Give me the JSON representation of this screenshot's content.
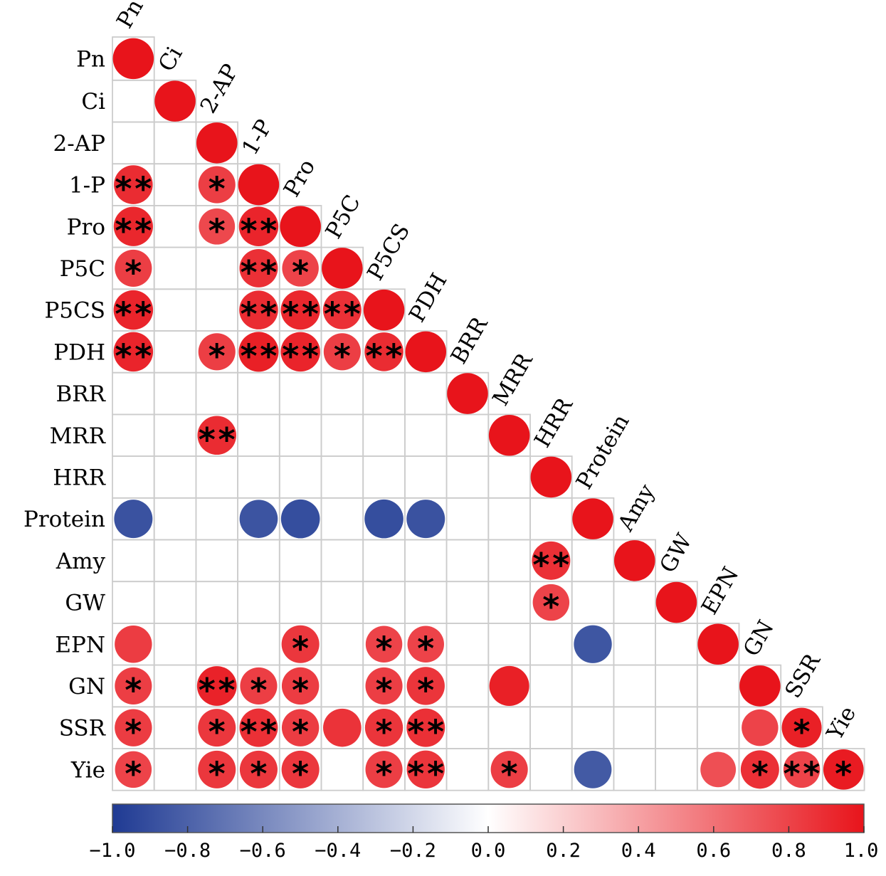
{
  "chart_data": {
    "type": "heatmap",
    "title": "",
    "variables": [
      "Pn",
      "Ci",
      "2-AP",
      "1-P",
      "Pro",
      "P5C",
      "P5CS",
      "PDH",
      "BRR",
      "MRR",
      "HRR",
      "Protein",
      "Amy",
      "GW",
      "EPN",
      "GN",
      "SSR",
      "Yie"
    ],
    "cells": [
      {
        "row": "Pn",
        "col": "Pn",
        "r": 1.0,
        "sig": ""
      },
      {
        "row": "Ci",
        "col": "Ci",
        "r": 1.0,
        "sig": ""
      },
      {
        "row": "2-AP",
        "col": "2-AP",
        "r": 1.0,
        "sig": ""
      },
      {
        "row": "1-P",
        "col": "Pn",
        "r": 0.9,
        "sig": "**"
      },
      {
        "row": "1-P",
        "col": "2-AP",
        "r": 0.82,
        "sig": "*"
      },
      {
        "row": "1-P",
        "col": "1-P",
        "r": 1.0,
        "sig": ""
      },
      {
        "row": "Pro",
        "col": "Pn",
        "r": 0.92,
        "sig": "**"
      },
      {
        "row": "Pro",
        "col": "2-AP",
        "r": 0.78,
        "sig": "*"
      },
      {
        "row": "Pro",
        "col": "1-P",
        "r": 0.93,
        "sig": "**"
      },
      {
        "row": "Pro",
        "col": "Pro",
        "r": 1.0,
        "sig": ""
      },
      {
        "row": "P5C",
        "col": "Pn",
        "r": 0.82,
        "sig": "*"
      },
      {
        "row": "P5C",
        "col": "1-P",
        "r": 0.88,
        "sig": "**"
      },
      {
        "row": "P5C",
        "col": "Pro",
        "r": 0.8,
        "sig": "*"
      },
      {
        "row": "P5C",
        "col": "P5C",
        "r": 1.0,
        "sig": ""
      },
      {
        "row": "P5CS",
        "col": "Pn",
        "r": 0.93,
        "sig": "**"
      },
      {
        "row": "P5CS",
        "col": "1-P",
        "r": 0.9,
        "sig": "**"
      },
      {
        "row": "P5CS",
        "col": "Pro",
        "r": 0.92,
        "sig": "**"
      },
      {
        "row": "P5CS",
        "col": "P5C",
        "r": 0.88,
        "sig": "**"
      },
      {
        "row": "P5CS",
        "col": "P5CS",
        "r": 1.0,
        "sig": ""
      },
      {
        "row": "PDH",
        "col": "Pn",
        "r": 0.93,
        "sig": "**"
      },
      {
        "row": "PDH",
        "col": "2-AP",
        "r": 0.82,
        "sig": "*"
      },
      {
        "row": "PDH",
        "col": "1-P",
        "r": 0.95,
        "sig": "**"
      },
      {
        "row": "PDH",
        "col": "Pro",
        "r": 0.93,
        "sig": "**"
      },
      {
        "row": "PDH",
        "col": "P5C",
        "r": 0.82,
        "sig": "*"
      },
      {
        "row": "PDH",
        "col": "P5CS",
        "r": 0.9,
        "sig": "**"
      },
      {
        "row": "PDH",
        "col": "PDH",
        "r": 1.0,
        "sig": ""
      },
      {
        "row": "BRR",
        "col": "BRR",
        "r": 1.0,
        "sig": ""
      },
      {
        "row": "MRR",
        "col": "2-AP",
        "r": 0.9,
        "sig": "**"
      },
      {
        "row": "MRR",
        "col": "MRR",
        "r": 1.0,
        "sig": ""
      },
      {
        "row": "HRR",
        "col": "HRR",
        "r": 1.0,
        "sig": ""
      },
      {
        "row": "Protein",
        "col": "Pn",
        "r": -0.88,
        "sig": ""
      },
      {
        "row": "Protein",
        "col": "1-P",
        "r": -0.87,
        "sig": ""
      },
      {
        "row": "Protein",
        "col": "Pro",
        "r": -0.9,
        "sig": ""
      },
      {
        "row": "Protein",
        "col": "P5CS",
        "r": -0.9,
        "sig": ""
      },
      {
        "row": "Protein",
        "col": "PDH",
        "r": -0.88,
        "sig": ""
      },
      {
        "row": "Protein",
        "col": "Protein",
        "r": 1.0,
        "sig": ""
      },
      {
        "row": "Amy",
        "col": "HRR",
        "r": 0.88,
        "sig": "**"
      },
      {
        "row": "Amy",
        "col": "Amy",
        "r": 1.0,
        "sig": ""
      },
      {
        "row": "GW",
        "col": "HRR",
        "r": 0.8,
        "sig": "*"
      },
      {
        "row": "GW",
        "col": "GW",
        "r": 1.0,
        "sig": ""
      },
      {
        "row": "EPN",
        "col": "Pn",
        "r": 0.83,
        "sig": ""
      },
      {
        "row": "EPN",
        "col": "Pro",
        "r": 0.85,
        "sig": "*"
      },
      {
        "row": "EPN",
        "col": "P5CS",
        "r": 0.8,
        "sig": "*"
      },
      {
        "row": "EPN",
        "col": "PDH",
        "r": 0.8,
        "sig": "*"
      },
      {
        "row": "EPN",
        "col": "Protein",
        "r": -0.86,
        "sig": ""
      },
      {
        "row": "EPN",
        "col": "EPN",
        "r": 1.0,
        "sig": ""
      },
      {
        "row": "GN",
        "col": "Pn",
        "r": 0.82,
        "sig": "*"
      },
      {
        "row": "GN",
        "col": "2-AP",
        "r": 0.94,
        "sig": "**"
      },
      {
        "row": "GN",
        "col": "1-P",
        "r": 0.82,
        "sig": "*"
      },
      {
        "row": "GN",
        "col": "Pro",
        "r": 0.83,
        "sig": "*"
      },
      {
        "row": "GN",
        "col": "P5CS",
        "r": 0.82,
        "sig": "*"
      },
      {
        "row": "GN",
        "col": "PDH",
        "r": 0.86,
        "sig": "*"
      },
      {
        "row": "GN",
        "col": "MRR",
        "r": 0.95,
        "sig": ""
      },
      {
        "row": "GN",
        "col": "GN",
        "r": 1.0,
        "sig": ""
      },
      {
        "row": "SSR",
        "col": "Pn",
        "r": 0.83,
        "sig": "*"
      },
      {
        "row": "SSR",
        "col": "2-AP",
        "r": 0.85,
        "sig": "*"
      },
      {
        "row": "SSR",
        "col": "1-P",
        "r": 0.88,
        "sig": "**"
      },
      {
        "row": "SSR",
        "col": "Pro",
        "r": 0.83,
        "sig": "*"
      },
      {
        "row": "SSR",
        "col": "P5C",
        "r": 0.87,
        "sig": ""
      },
      {
        "row": "SSR",
        "col": "P5CS",
        "r": 0.86,
        "sig": "*"
      },
      {
        "row": "SSR",
        "col": "PDH",
        "r": 0.88,
        "sig": "**"
      },
      {
        "row": "SSR",
        "col": "GN",
        "r": 0.8,
        "sig": ""
      },
      {
        "row": "SSR",
        "col": "SSR",
        "r": 0.95,
        "sig": "*"
      },
      {
        "row": "Yie",
        "col": "Pn",
        "r": 0.8,
        "sig": "*"
      },
      {
        "row": "Yie",
        "col": "2-AP",
        "r": 0.85,
        "sig": "*"
      },
      {
        "row": "Yie",
        "col": "1-P",
        "r": 0.85,
        "sig": "*"
      },
      {
        "row": "Yie",
        "col": "Pro",
        "r": 0.85,
        "sig": "*"
      },
      {
        "row": "Yie",
        "col": "P5CS",
        "r": 0.82,
        "sig": "*"
      },
      {
        "row": "Yie",
        "col": "PDH",
        "r": 0.86,
        "sig": "**"
      },
      {
        "row": "Yie",
        "col": "MRR",
        "r": 0.82,
        "sig": "*"
      },
      {
        "row": "Yie",
        "col": "Protein",
        "r": -0.84,
        "sig": ""
      },
      {
        "row": "Yie",
        "col": "EPN",
        "r": 0.75,
        "sig": ""
      },
      {
        "row": "Yie",
        "col": "GN",
        "r": 0.88,
        "sig": "*"
      },
      {
        "row": "Yie",
        "col": "SSR",
        "r": 0.8,
        "sig": "**"
      },
      {
        "row": "Yie",
        "col": "Yie",
        "r": 0.97,
        "sig": "*"
      }
    ],
    "colorbar": {
      "range": [
        -1.0,
        1.0
      ],
      "ticks": [
        "−1.0",
        "−0.8",
        "−0.6",
        "−0.4",
        "−0.2",
        "0.0",
        "0.2",
        "0.4",
        "0.6",
        "0.8",
        "1.0"
      ],
      "colors": {
        "negative": "#1f3a93",
        "zero": "#ffffff",
        "positive": "#e8141b"
      }
    },
    "grid": true,
    "legend_placement": "bottom"
  }
}
